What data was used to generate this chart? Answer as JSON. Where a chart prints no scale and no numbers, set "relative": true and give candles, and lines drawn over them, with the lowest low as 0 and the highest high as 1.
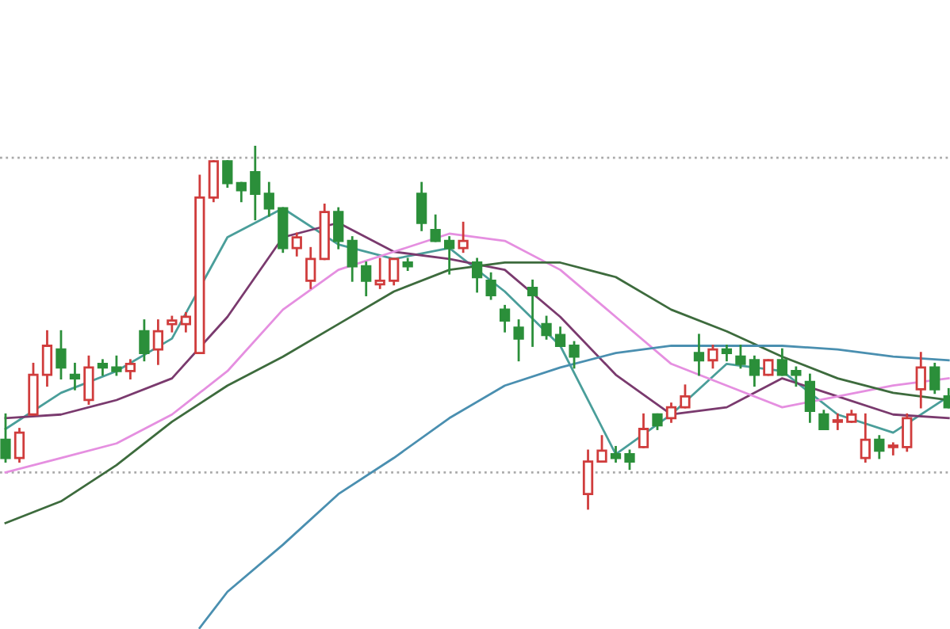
{
  "chart_data": {
    "type": "candlestick",
    "relative": true,
    "categories": [
      null,
      null,
      null,
      null,
      null,
      null,
      null,
      null,
      null,
      null,
      null,
      null,
      null,
      null,
      null,
      null,
      null,
      null,
      null,
      null,
      null,
      null,
      null,
      null,
      null,
      null,
      null,
      null,
      null,
      null,
      null,
      null,
      null,
      null,
      null,
      null,
      null,
      null,
      null,
      null,
      null,
      null,
      null,
      null,
      null,
      null,
      null,
      null,
      null,
      null,
      null,
      null,
      null,
      null,
      null,
      null,
      null,
      null,
      null,
      null,
      null,
      null,
      null,
      null,
      null,
      null,
      null,
      null,
      null
    ],
    "colors": [
      "#2b8f3a",
      "#d03c3c",
      "#d03c3c",
      "#d03c3c",
      "#2b8f3a",
      "#2b8f3a",
      "#d03c3c",
      "#2b8f3a",
      "#2b8f3a",
      "#d03c3c",
      "#2b8f3a",
      "#d03c3c",
      "#d03c3c",
      "#d03c3c",
      "#d03c3c",
      "#d03c3c",
      "#2b8f3a",
      "#2b8f3a",
      "#2b8f3a",
      "#2b8f3a",
      "#2b8f3a",
      "#d03c3c",
      "#d03c3c",
      "#d03c3c",
      "#2b8f3a",
      "#2b8f3a",
      "#2b8f3a",
      "#d03c3c",
      "#d03c3c",
      "#2b8f3a",
      "#2b8f3a",
      "#2b8f3a",
      "#2b8f3a",
      "#d03c3c",
      "#2b8f3a",
      "#2b8f3a",
      "#2b8f3a",
      "#2b8f3a",
      "#2b8f3a",
      "#2b8f3a",
      "#2b8f3a",
      "#2b8f3a",
      "#d03c3c",
      "#d03c3c",
      "#2b8f3a",
      "#2b8f3a",
      "#d03c3c",
      "#2b8f3a",
      "#d03c3c",
      "#d03c3c",
      "#2b8f3a",
      "#d03c3c",
      "#2b8f3a",
      "#2b8f3a",
      "#2b8f3a",
      "#d03c3c",
      "#2b8f3a",
      "#2b8f3a",
      "#2b8f3a",
      "#2b8f3a",
      "#d03c3c",
      "#d03c3c",
      "#d03c3c",
      "#2b8f3a",
      "#d03c3c",
      "#d03c3c",
      "#d03c3c",
      "#2b8f3a",
      "#2b8f3a"
    ],
    "ohlc": [
      [
        0.19,
        0.26,
        0.13,
        0.14
      ],
      [
        0.14,
        0.22,
        0.13,
        0.21
      ],
      [
        0.26,
        0.4,
        0.26,
        0.37
      ],
      [
        0.37,
        0.49,
        0.34,
        0.45
      ],
      [
        0.44,
        0.49,
        0.36,
        0.39
      ],
      [
        0.37,
        0.4,
        0.33,
        0.36
      ],
      [
        0.3,
        0.42,
        0.29,
        0.39
      ],
      [
        0.4,
        0.41,
        0.37,
        0.39
      ],
      [
        0.39,
        0.42,
        0.37,
        0.38
      ],
      [
        0.38,
        0.41,
        0.36,
        0.4
      ],
      [
        0.49,
        0.52,
        0.41,
        0.43
      ],
      [
        0.44,
        0.52,
        0.4,
        0.49
      ],
      [
        0.51,
        0.53,
        0.49,
        0.52
      ],
      [
        0.51,
        0.54,
        0.49,
        0.53
      ],
      [
        0.43,
        0.92,
        0.43,
        0.86
      ],
      [
        0.86,
        0.96,
        0.85,
        0.96
      ],
      [
        0.96,
        0.96,
        0.89,
        0.9
      ],
      [
        0.9,
        0.9,
        0.85,
        0.88
      ],
      [
        0.93,
        1.0,
        0.8,
        0.87
      ],
      [
        0.87,
        0.9,
        0.81,
        0.83
      ],
      [
        0.83,
        0.83,
        0.71,
        0.72
      ],
      [
        0.72,
        0.76,
        0.7,
        0.75
      ],
      [
        0.63,
        0.72,
        0.61,
        0.69
      ],
      [
        0.69,
        0.84,
        0.69,
        0.82
      ],
      [
        0.82,
        0.83,
        0.72,
        0.74
      ],
      [
        0.74,
        0.75,
        0.63,
        0.67
      ],
      [
        0.67,
        0.68,
        0.59,
        0.63
      ],
      [
        0.62,
        0.69,
        0.61,
        0.63
      ],
      [
        0.63,
        0.69,
        0.62,
        0.69
      ],
      [
        0.68,
        0.69,
        0.66,
        0.67
      ],
      [
        0.87,
        0.9,
        0.77,
        0.79
      ],
      [
        0.77,
        0.81,
        0.74,
        0.74
      ],
      [
        0.74,
        0.75,
        0.65,
        0.72
      ],
      [
        0.72,
        0.79,
        0.71,
        0.74
      ],
      [
        0.68,
        0.69,
        0.6,
        0.64
      ],
      [
        0.63,
        0.65,
        0.58,
        0.59
      ],
      [
        0.55,
        0.56,
        0.49,
        0.52
      ],
      [
        0.5,
        0.52,
        0.41,
        0.47
      ],
      [
        0.61,
        0.63,
        0.45,
        0.59
      ],
      [
        0.51,
        0.53,
        0.47,
        0.48
      ],
      [
        0.48,
        0.5,
        0.45,
        0.45
      ],
      [
        0.45,
        0.46,
        0.39,
        0.42
      ],
      [
        0.04,
        0.16,
        0.0,
        0.13
      ],
      [
        0.13,
        0.2,
        0.13,
        0.16
      ],
      [
        0.15,
        0.17,
        0.13,
        0.14
      ],
      [
        0.15,
        0.16,
        0.11,
        0.13
      ],
      [
        0.17,
        0.26,
        0.17,
        0.22
      ],
      [
        0.26,
        0.26,
        0.22,
        0.23
      ],
      [
        0.25,
        0.29,
        0.24,
        0.28
      ],
      [
        0.28,
        0.34,
        0.28,
        0.31
      ],
      [
        0.43,
        0.48,
        0.37,
        0.41
      ],
      [
        0.41,
        0.45,
        0.39,
        0.44
      ],
      [
        0.44,
        0.45,
        0.41,
        0.43
      ],
      [
        0.42,
        0.45,
        0.39,
        0.4
      ],
      [
        0.41,
        0.42,
        0.34,
        0.37
      ],
      [
        0.37,
        0.41,
        0.37,
        0.41
      ],
      [
        0.41,
        0.44,
        0.37,
        0.37
      ],
      [
        0.38,
        0.39,
        0.34,
        0.37
      ],
      [
        0.35,
        0.37,
        0.24,
        0.27
      ],
      [
        0.26,
        0.27,
        0.22,
        0.22
      ],
      [
        0.24,
        0.26,
        0.22,
        0.24
      ],
      [
        0.24,
        0.27,
        0.24,
        0.26
      ],
      [
        0.14,
        0.26,
        0.13,
        0.19
      ],
      [
        0.19,
        0.2,
        0.14,
        0.16
      ],
      [
        0.17,
        0.18,
        0.15,
        0.17
      ],
      [
        0.17,
        0.26,
        0.16,
        0.25
      ],
      [
        0.33,
        0.43,
        0.28,
        0.39
      ],
      [
        0.39,
        0.4,
        0.32,
        0.33
      ],
      [
        0.31,
        0.33,
        0.28,
        0.28
      ]
    ],
    "series": [
      {
        "type": "line",
        "color": "#4a9e9a",
        "values": [
          0.22,
          null,
          null,
          null,
          0.32,
          null,
          null,
          null,
          0.38,
          null,
          null,
          null,
          0.47,
          null,
          null,
          null,
          0.75,
          null,
          null,
          null,
          0.83,
          null,
          null,
          null,
          0.73,
          null,
          null,
          null,
          0.69,
          null,
          null,
          null,
          0.72,
          null,
          null,
          null,
          0.6,
          null,
          null,
          null,
          0.45,
          null,
          null,
          null,
          0.15,
          null,
          null,
          null,
          0.26,
          null,
          null,
          null,
          0.4,
          null,
          null,
          null,
          0.38,
          null,
          null,
          null,
          0.26,
          null,
          null,
          null,
          0.21,
          null,
          null,
          null,
          0.31
        ]
      },
      {
        "type": "line",
        "color": "#7a3a6e",
        "values": [
          0.25,
          null,
          null,
          null,
          0.26,
          null,
          null,
          null,
          0.3,
          null,
          null,
          null,
          0.36,
          null,
          null,
          null,
          0.53,
          null,
          null,
          null,
          0.75,
          null,
          null,
          null,
          0.79,
          null,
          null,
          null,
          0.71,
          null,
          null,
          null,
          0.69,
          null,
          null,
          null,
          0.66,
          null,
          null,
          null,
          0.53,
          null,
          null,
          null,
          0.37,
          null,
          null,
          null,
          0.26,
          null,
          null,
          null,
          0.28,
          null,
          null,
          null,
          0.36,
          null,
          null,
          null,
          0.31,
          null,
          null,
          null,
          0.26,
          null,
          null,
          null,
          0.25
        ]
      },
      {
        "type": "line",
        "color": "#e58fe0",
        "values": [
          0.1,
          null,
          null,
          null,
          0.14,
          null,
          null,
          null,
          0.18,
          null,
          null,
          null,
          0.26,
          null,
          null,
          null,
          0.38,
          null,
          null,
          null,
          0.55,
          null,
          null,
          null,
          0.66,
          null,
          null,
          null,
          0.71,
          null,
          null,
          null,
          0.76,
          null,
          null,
          null,
          0.74,
          null,
          null,
          null,
          0.66,
          null,
          null,
          null,
          0.53,
          null,
          null,
          null,
          0.4,
          null,
          null,
          null,
          0.34,
          null,
          null,
          null,
          0.28,
          null,
          null,
          null,
          0.31,
          null,
          null,
          null,
          0.34,
          null,
          null,
          null,
          0.36
        ]
      },
      {
        "type": "line",
        "color": "#3d6b3d",
        "values": [
          -0.04,
          null,
          null,
          null,
          0.02,
          null,
          null,
          null,
          0.12,
          null,
          null,
          null,
          0.24,
          null,
          null,
          null,
          0.34,
          null,
          null,
          null,
          0.42,
          null,
          null,
          null,
          0.51,
          null,
          null,
          null,
          0.6,
          null,
          null,
          null,
          0.66,
          null,
          null,
          null,
          0.68,
          null,
          null,
          null,
          0.68,
          null,
          null,
          null,
          0.64,
          null,
          null,
          null,
          0.55,
          null,
          null,
          null,
          0.49,
          null,
          null,
          null,
          0.42,
          null,
          null,
          null,
          0.36,
          null,
          null,
          null,
          0.32,
          null,
          null,
          null,
          0.3
        ]
      },
      {
        "type": "line",
        "color": "#4a8fb0",
        "values": [
          null,
          null,
          null,
          null,
          null,
          null,
          null,
          null,
          null,
          null,
          null,
          null,
          null,
          null,
          -0.33,
          null,
          -0.23,
          null,
          null,
          null,
          -0.1,
          null,
          null,
          null,
          0.04,
          null,
          null,
          null,
          0.14,
          null,
          null,
          null,
          0.25,
          null,
          null,
          null,
          0.34,
          null,
          null,
          null,
          0.39,
          null,
          null,
          null,
          0.43,
          null,
          null,
          null,
          0.45,
          null,
          null,
          null,
          0.45,
          null,
          null,
          null,
          0.45,
          null,
          null,
          null,
          0.44,
          null,
          null,
          null,
          0.42,
          null,
          null,
          null,
          0.41
        ]
      }
    ],
    "ref_lines": [
      {
        "axis": "y",
        "value": 0.97,
        "color": "#aaaaaa",
        "line_style": "dotted"
      },
      {
        "axis": "y",
        "value": 0.1,
        "color": "#aaaaaa",
        "line_style": "dotted"
      }
    ]
  }
}
